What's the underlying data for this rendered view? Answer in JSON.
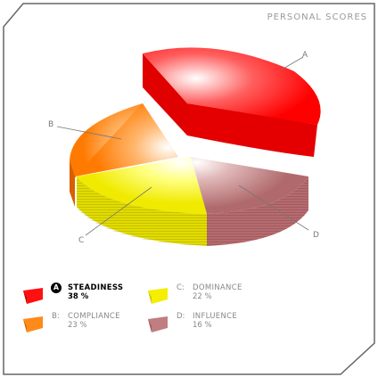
{
  "header": {
    "title": "PERSONAL SCORES"
  },
  "chart_data": {
    "type": "pie",
    "title": "PERSONAL SCORES",
    "slices": [
      {
        "key": "A",
        "label": "STEADINESS",
        "prefix": "A",
        "value": 38,
        "display": "38 %",
        "color": "#ff1010",
        "active": true
      },
      {
        "key": "B",
        "label": "COMPLIANCE",
        "prefix": "B:",
        "value": 23,
        "display": "23 %",
        "color": "#ff8a1a",
        "active": false
      },
      {
        "key": "C",
        "label": "DOMINANCE",
        "prefix": "C:",
        "value": 22,
        "display": "22 %",
        "color": "#f4ee00",
        "active": false
      },
      {
        "key": "D",
        "label": "INFLUENCE",
        "prefix": "D:",
        "value": 16,
        "display": "16 %",
        "color": "#c07e80",
        "active": false
      }
    ]
  },
  "legend": {
    "items": [
      {
        "prefix": "A",
        "name": "STEADINESS",
        "value": "38 %"
      },
      {
        "prefix": "B:",
        "name": "COMPLIANCE",
        "value": "23 %"
      },
      {
        "prefix": "C:",
        "name": "DOMINANCE",
        "value": "22 %"
      },
      {
        "prefix": "D:",
        "name": "INFLUENCE",
        "value": "16 %"
      }
    ]
  },
  "colors": {
    "border": "#666666",
    "background": "#ffffff",
    "label_text": "#777777"
  }
}
